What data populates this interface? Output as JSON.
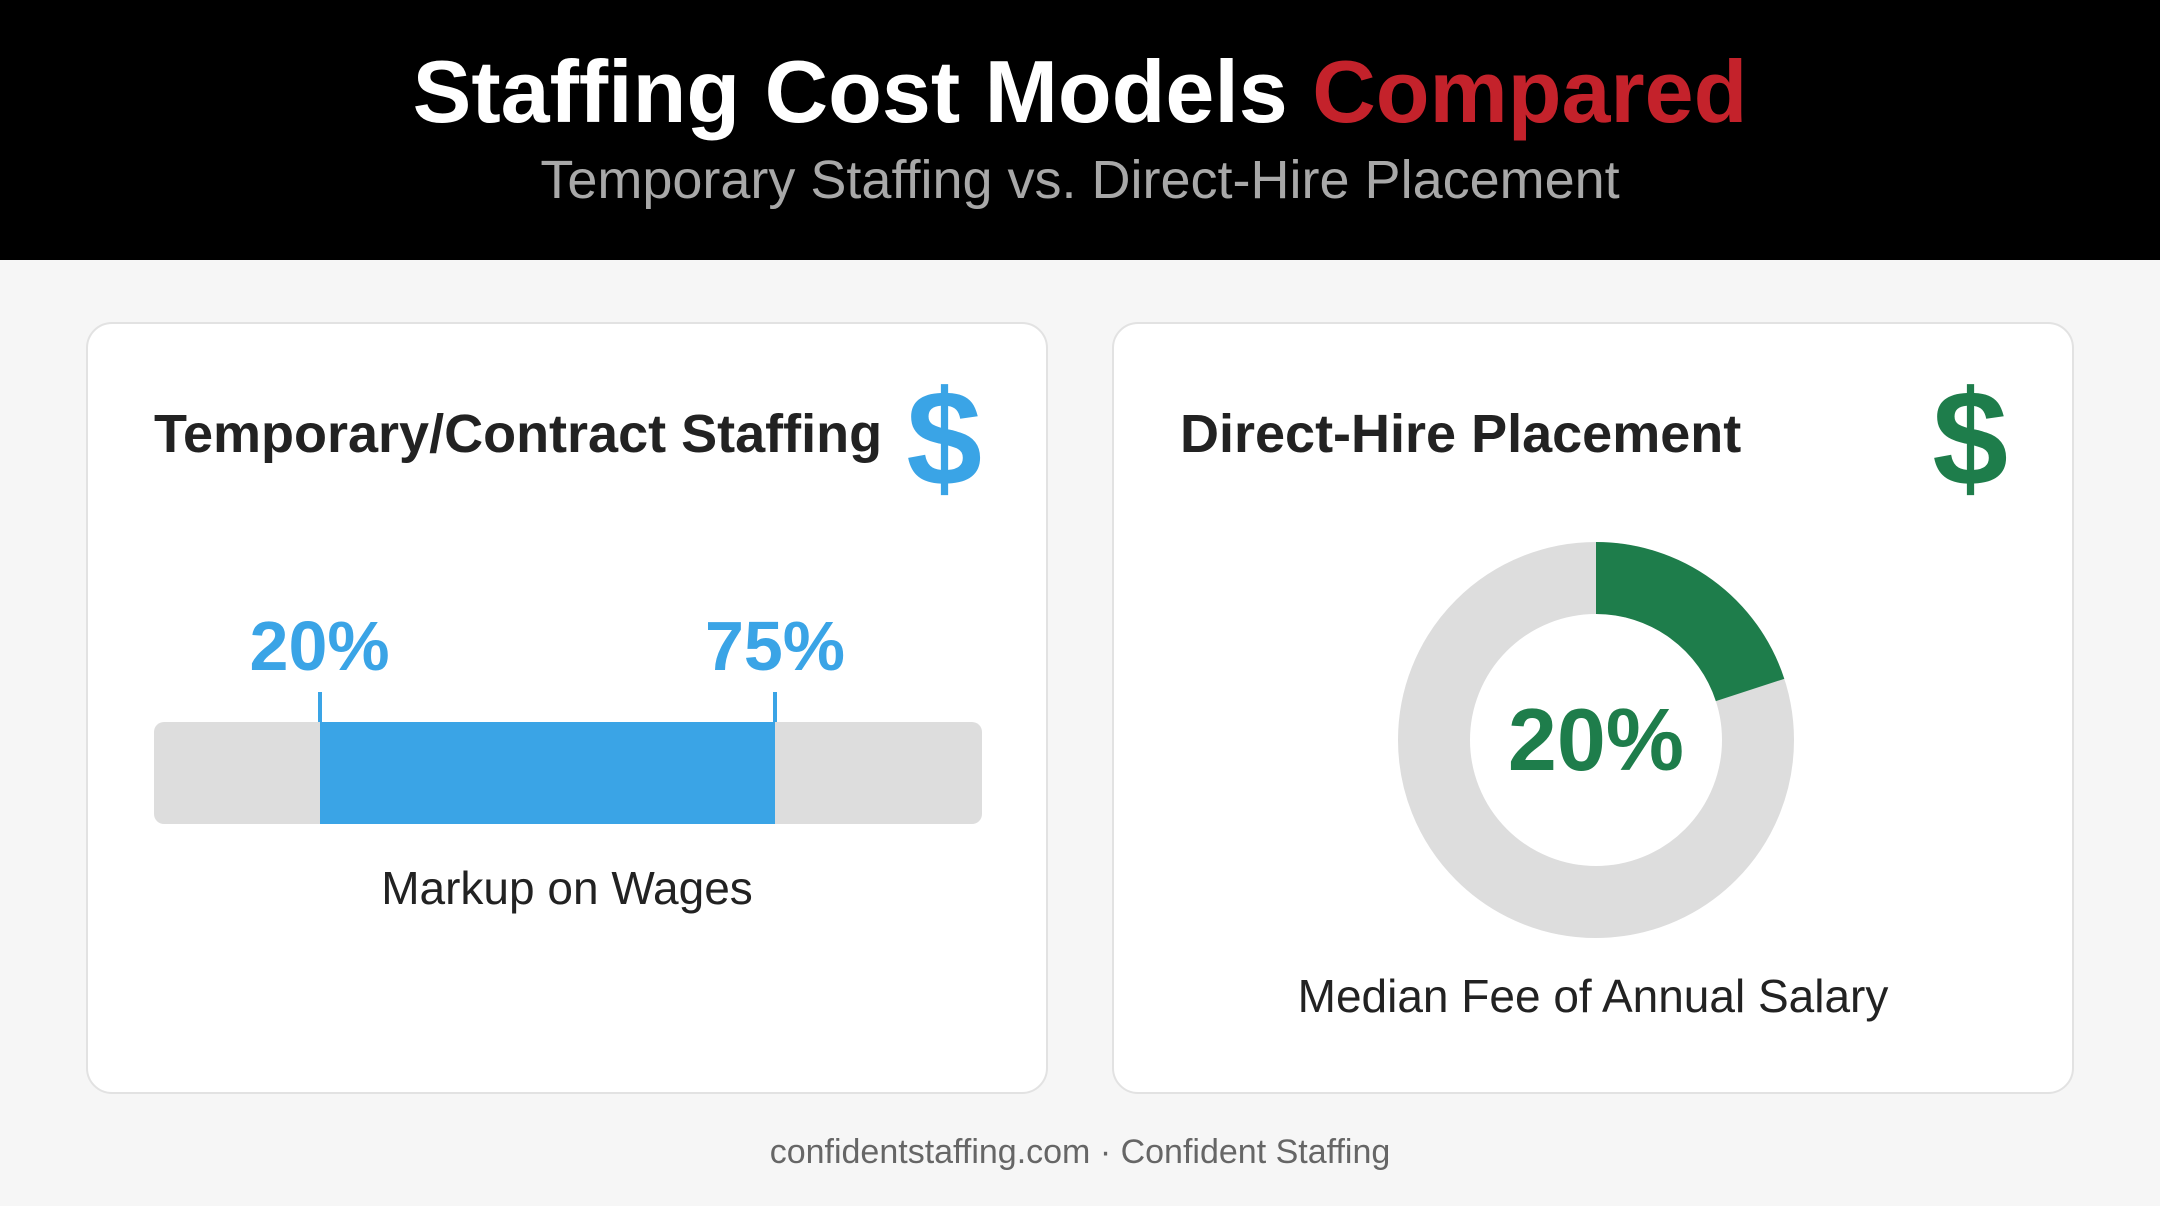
{
  "header": {
    "title_main": "Staffing Cost Models",
    "title_accent": "Compared",
    "subtitle": "Temporary Staffing vs. Direct-Hire Placement"
  },
  "colors": {
    "background": "#f6f6f6",
    "header_bg": "#000000",
    "accent_red": "#c4222b",
    "temp_blue": "#3aa4e6",
    "direct_green": "#1e7d4b",
    "track_gray": "#dddddd"
  },
  "temp_card": {
    "title": "Temporary/Contract Staffing",
    "icon": "dollar-sign-icon",
    "icon_glyph": "$",
    "caption": "Markup on Wages"
  },
  "direct_card": {
    "title": "Direct-Hire Placement",
    "icon": "dollar-sign-icon",
    "icon_glyph": "$",
    "caption": "Median Fee of Annual Salary"
  },
  "chart_data": [
    {
      "type": "bar",
      "title": "Temporary/Contract Staffing",
      "orientation": "horizontal",
      "range": {
        "low": 20,
        "high": 75,
        "unit": "%"
      },
      "labels": {
        "low": "20%",
        "high": "75%"
      },
      "xlim": [
        0,
        100
      ],
      "xlabel": "Markup on Wages",
      "grid": false,
      "legend": "none"
    },
    {
      "type": "pie",
      "title": "Direct-Hire Placement",
      "style": "donut",
      "value": 20,
      "total": 100,
      "unit": "%",
      "center_label": "20%",
      "caption": "Median Fee of Annual Salary",
      "legend": "none"
    }
  ],
  "footer": {
    "text": "confidentstaffing.com · Confident Staffing"
  }
}
